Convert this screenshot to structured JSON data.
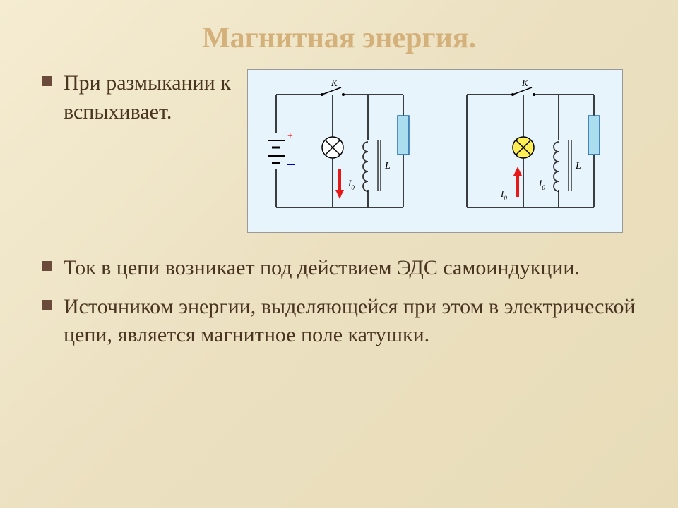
{
  "title": "Магнитная энергия.",
  "topText": "При размыкании к вспыхивает.",
  "bullets": [
    "Ток в цепи возникает под действием ЭДС самоиндукции.",
    "Источником энергии, выделяющейся при этом в электрической цепи, является магнитное поле катушки."
  ],
  "diagram": {
    "background": "#e8f4fc",
    "wireColor": "#000000",
    "batteryColor": "#000000",
    "plusColor": "#ff0000",
    "minusColor": "#0000cc",
    "bulbOffFill": "#ffffff",
    "bulbOnFill": "#ffee55",
    "resistorFill": "#aaddee",
    "resistorStroke": "#2266aa",
    "coilColor": "#333333",
    "arrowColor": "#e61919",
    "labels": {
      "switch": "K",
      "current": "I",
      "currentSub": "0",
      "inductor": "L"
    },
    "circuit1": {
      "hasBattery": true,
      "bulbOn": false,
      "arrowDir": "down",
      "arrowX": 120
    },
    "circuit2": {
      "hasBattery": false,
      "bulbOn": true,
      "arrowDir": "up",
      "arrowX": 102
    }
  }
}
